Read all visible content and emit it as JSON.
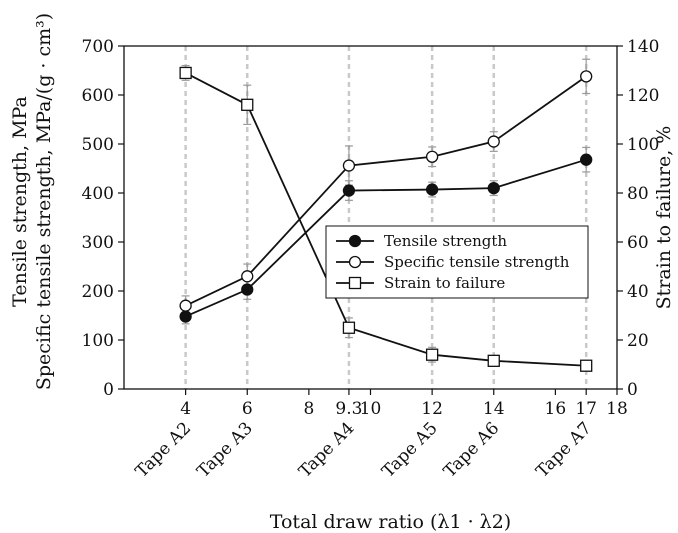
{
  "chart_data": {
    "type": "line",
    "xlabel": "Total draw ratio (λ1 · λ2)",
    "ylabel_left_line1": "Tensile strength, MPa",
    "ylabel_left_line2": "Specific tensile strength, MPa/(g · cm³)",
    "ylabel_right": "Strain to failure, %",
    "xlim": [
      2,
      18
    ],
    "ylim_left": [
      0,
      700
    ],
    "ylim_right": [
      0,
      140
    ],
    "x_ticks": [
      4,
      6,
      8,
      9.3,
      10,
      12,
      14,
      16,
      17,
      18
    ],
    "y_left_ticks": [
      0,
      100,
      200,
      300,
      400,
      500,
      600,
      700
    ],
    "y_right_ticks": [
      0,
      20,
      40,
      60,
      80,
      100,
      120,
      140
    ],
    "x": [
      4,
      6,
      9.3,
      12,
      14,
      17
    ],
    "sample_labels": [
      "Tape A2",
      "Tape A3",
      "Tape A4",
      "Tape A5",
      "Tape A6",
      "Tape A7"
    ],
    "legend_position": "center-right",
    "series": [
      {
        "name": "Tensile strength",
        "axis": "left",
        "marker": "filled-circle",
        "values": [
          148,
          203,
          405,
          407,
          410,
          468
        ],
        "errors": [
          15,
          20,
          20,
          15,
          15,
          25
        ]
      },
      {
        "name": "Specific tensile strength",
        "axis": "left",
        "marker": "open-circle",
        "values": [
          170,
          230,
          456,
          474,
          505,
          638
        ],
        "errors": [
          20,
          25,
          40,
          20,
          20,
          35
        ]
      },
      {
        "name": "Strain to failure",
        "axis": "right",
        "marker": "open-square",
        "values": [
          129,
          116,
          25,
          14,
          11.5,
          9.5
        ],
        "errors": [
          3,
          8,
          4,
          3,
          2,
          2
        ]
      }
    ]
  }
}
